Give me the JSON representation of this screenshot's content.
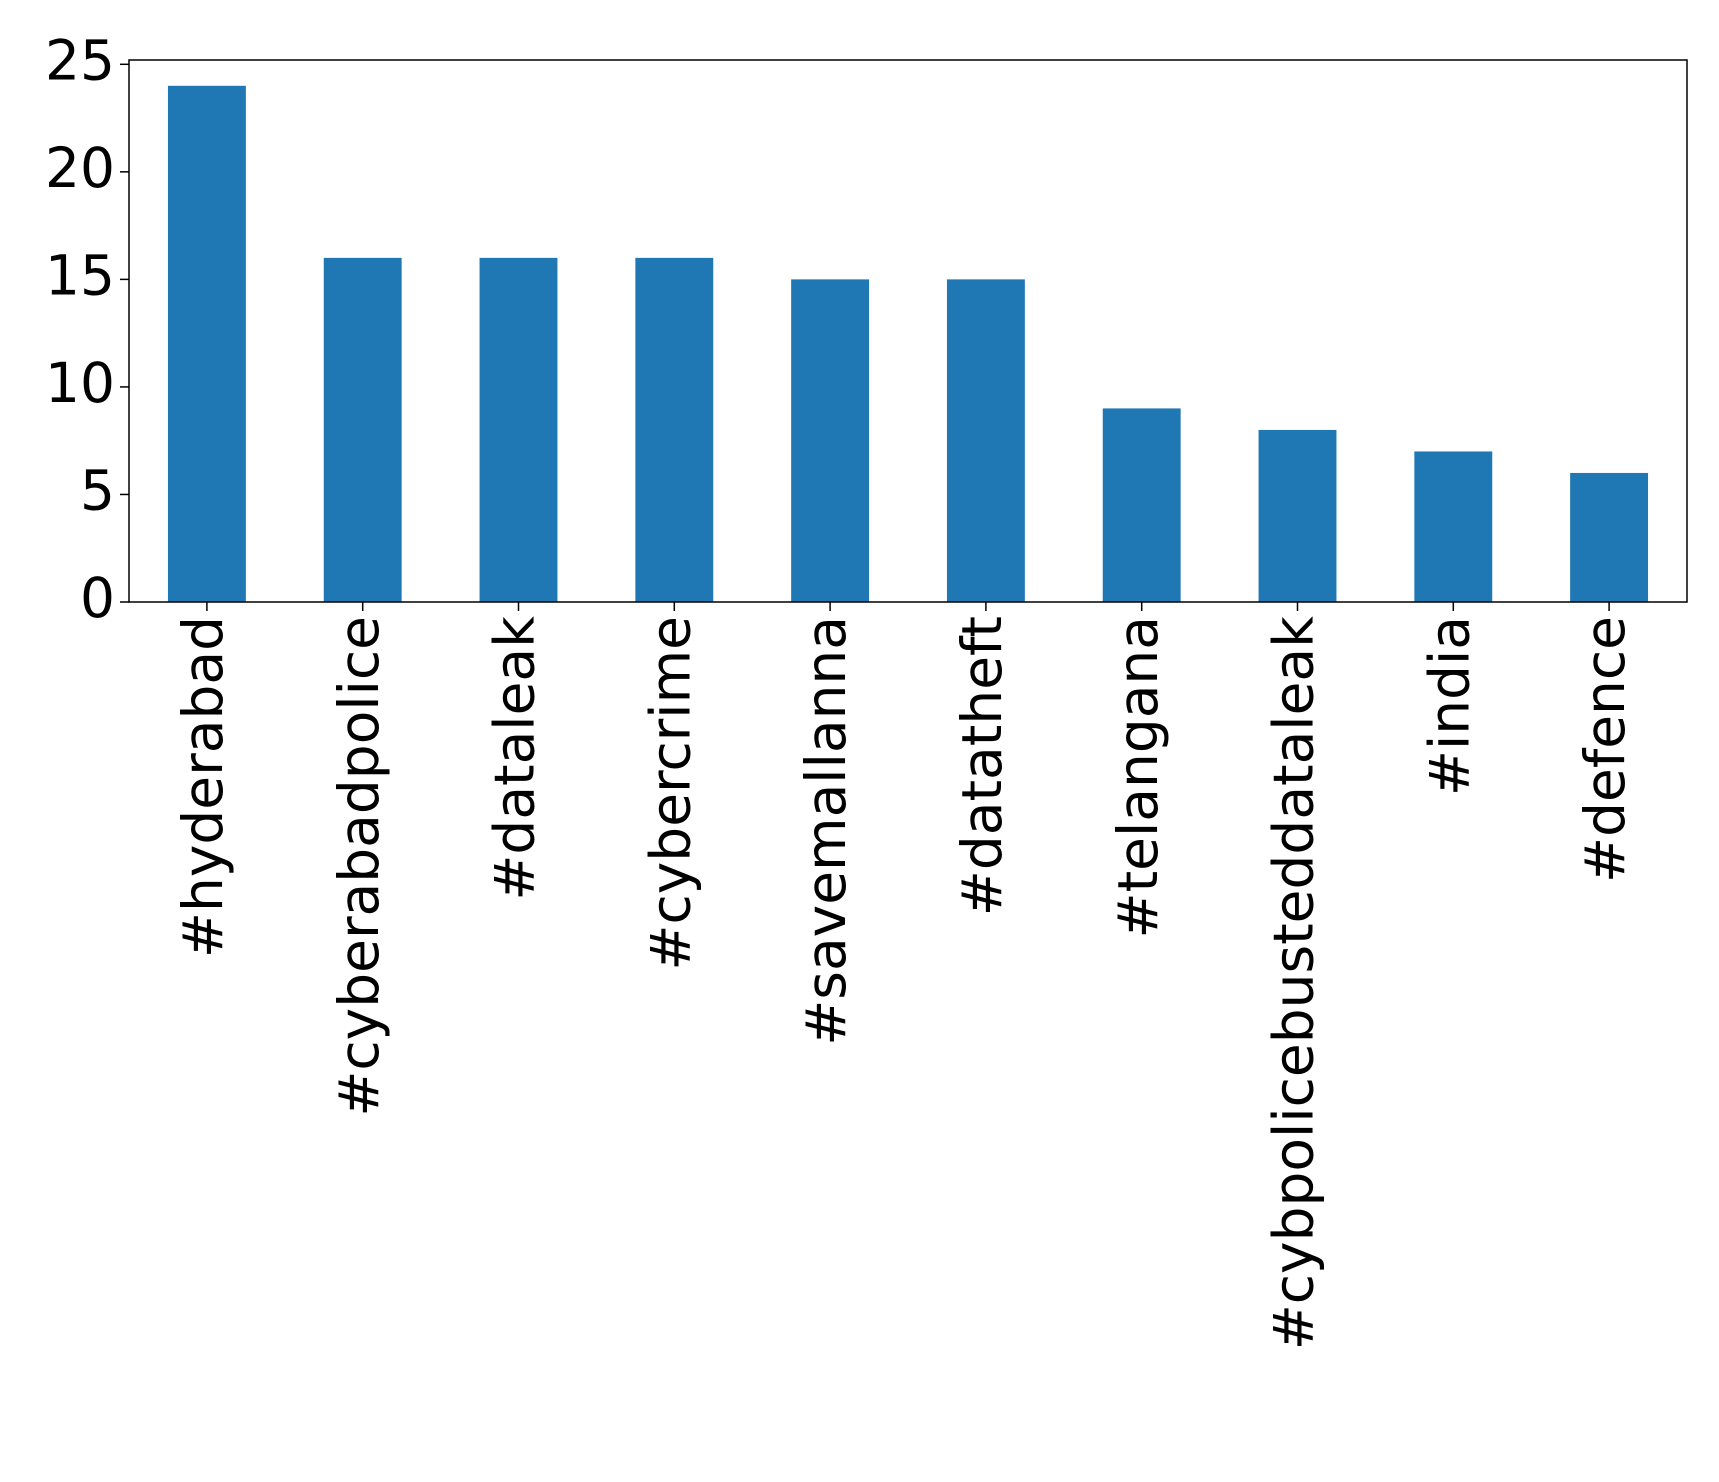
{
  "chart_data": {
    "type": "bar",
    "categories": [
      "#hyderabad",
      "#cyberabadpolice",
      "#dataleak",
      "#cybercrime",
      "#savemallanna",
      "#datatheft",
      "#telangana",
      "#cybpolicebusteddataleak",
      "#india",
      "#defence"
    ],
    "values": [
      24,
      16,
      16,
      16,
      15,
      15,
      9,
      8,
      7,
      6
    ],
    "color": "#1f77b4",
    "ylim": [
      0,
      25.2
    ],
    "yticks": [
      0,
      5,
      10,
      15,
      20,
      25
    ],
    "grid": false
  }
}
